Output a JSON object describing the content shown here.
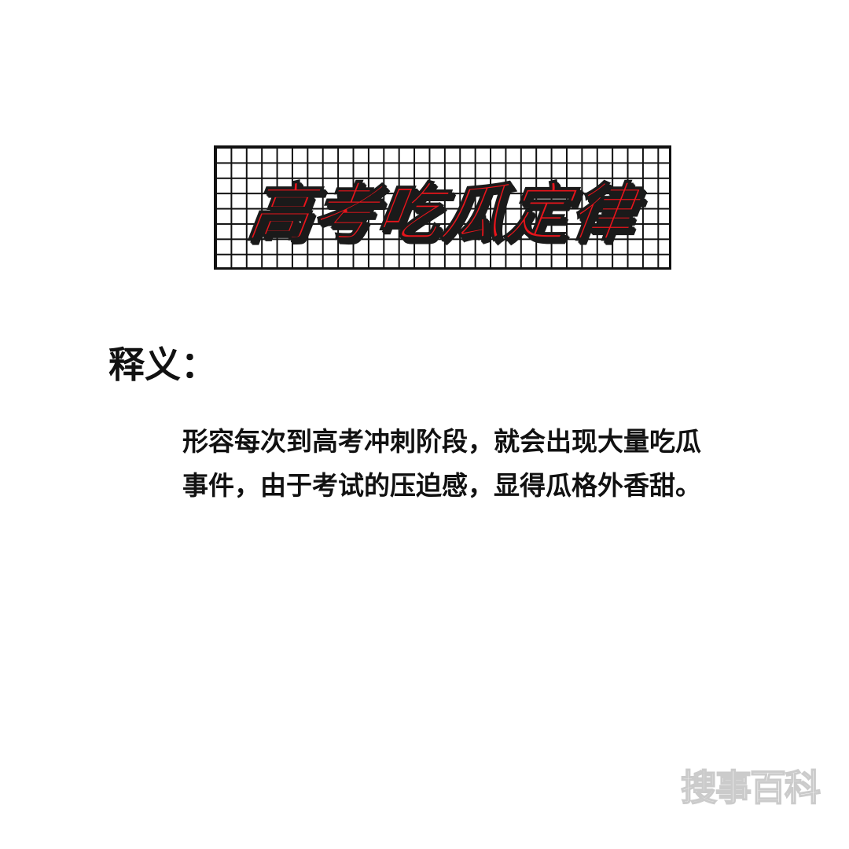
{
  "title": "高考吃瓜定律",
  "section_heading": "释义：",
  "definition": {
    "line1": "形容每次到高考冲刺阶段，就会出现大量吃瓜",
    "line2": "事件，由于考试的压迫感，显得瓜格外香甜。"
  },
  "watermark": "搜事百科",
  "colors": {
    "title_red": "#e8141b",
    "text": "#111111",
    "background": "#ffffff"
  }
}
